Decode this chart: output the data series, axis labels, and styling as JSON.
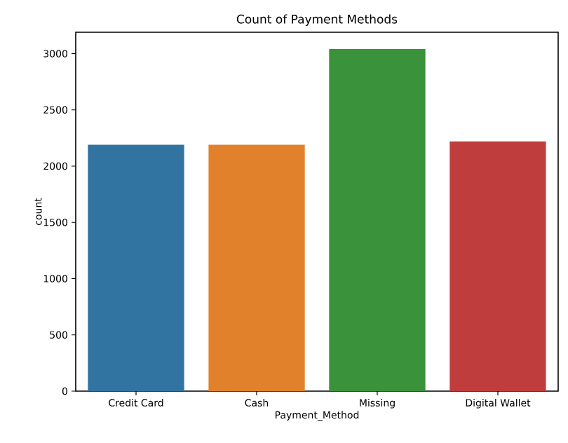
{
  "chart_data": {
    "type": "bar",
    "title": "Count of Payment Methods",
    "xlabel": "Payment_Method",
    "ylabel": "count",
    "categories": [
      "Credit Card",
      "Cash",
      "Missing",
      "Digital Wallet"
    ],
    "values": [
      2190,
      2190,
      3040,
      2220
    ],
    "colors": [
      "#3274a1",
      "#e1812c",
      "#3a923a",
      "#c03d3e"
    ],
    "ylim": [
      0,
      3190
    ],
    "yticks": [
      0,
      500,
      1000,
      1500,
      2000,
      2500,
      3000
    ]
  }
}
